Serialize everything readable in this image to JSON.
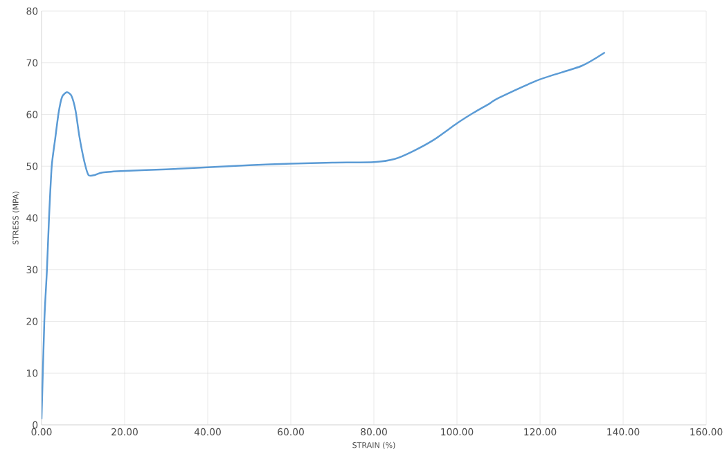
{
  "chart_data": {
    "type": "line",
    "xlabel": "STRAIN (%)",
    "ylabel": "STRESS (MPA)",
    "xlim": [
      0,
      160
    ],
    "ylim": [
      0,
      80
    ],
    "xticks": [
      {
        "value": 0,
        "label": "0.00"
      },
      {
        "value": 20,
        "label": "20.00"
      },
      {
        "value": 40,
        "label": "40.00"
      },
      {
        "value": 60,
        "label": "60.00"
      },
      {
        "value": 80,
        "label": "80.00"
      },
      {
        "value": 100,
        "label": "100.00"
      },
      {
        "value": 120,
        "label": "120.00"
      },
      {
        "value": 140,
        "label": "140.00"
      },
      {
        "value": 160,
        "label": "160.00"
      }
    ],
    "yticks": [
      0,
      10,
      20,
      30,
      40,
      50,
      60,
      70,
      80
    ],
    "grid": true,
    "marker": "none",
    "line_style": "solid",
    "series": [
      {
        "color": "#5b9bd5",
        "x": [
          0,
          0.67,
          1.3,
          1.8,
          2.45,
          3.3,
          4.1,
          4.95,
          6.1,
          7.2,
          8.2,
          9.1,
          10.3,
          11.3,
          12.8,
          14.7,
          20,
          30,
          40,
          50,
          60,
          70,
          80,
          85,
          89.4,
          94.4,
          100,
          103.9,
          107.8,
          110,
          120,
          130,
          135.6
        ],
        "values": [
          1.1,
          20,
          30,
          40,
          50,
          55.4,
          60.3,
          63.4,
          64.3,
          63.6,
          60.7,
          55.8,
          50.9,
          48.3,
          48.3,
          48.8,
          49.1,
          49.4,
          49.8,
          50.2,
          50.5,
          50.7,
          50.8,
          51.4,
          52.9,
          55.1,
          58.3,
          60.3,
          62.1,
          63.2,
          66.8,
          69.4,
          72.0
        ]
      }
    ]
  }
}
